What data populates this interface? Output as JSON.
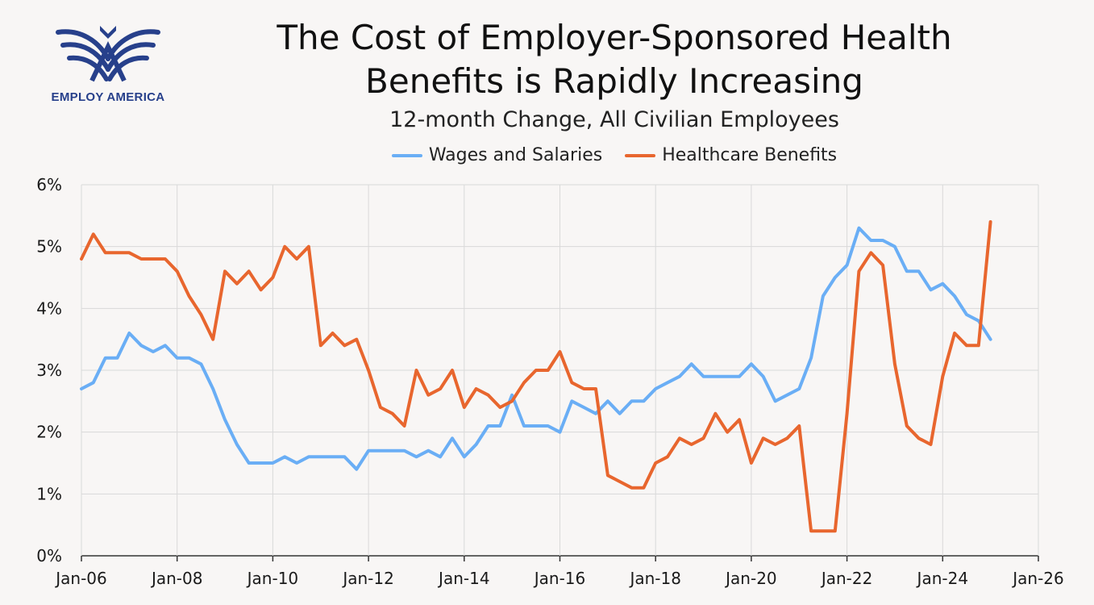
{
  "header": {
    "logo_text": "EMPLOY AMERICA",
    "title_line1": "The Cost of Employer-Sponsored Health",
    "title_line2": "Benefits is Rapidly Increasing",
    "subtitle": "12-month Change, All Civilian Employees"
  },
  "colors": {
    "wages": "#6aaef5",
    "healthcare": "#e8662e",
    "grid": "#d9d9d9",
    "brand": "#27408b"
  },
  "chart_data": {
    "type": "line",
    "title": "The Cost of Employer-Sponsored Health Benefits is Rapidly Increasing",
    "subtitle": "12-month Change, All Civilian Employees",
    "legend_position": "top",
    "grid": true,
    "x_tick_labels": [
      "Jan-06",
      "Jan-08",
      "Jan-10",
      "Jan-12",
      "Jan-14",
      "Jan-16",
      "Jan-18",
      "Jan-20",
      "Jan-22",
      "Jan-24",
      "Jan-26"
    ],
    "y_tick_labels": [
      "0%",
      "1%",
      "2%",
      "3%",
      "4%",
      "5%",
      "6%"
    ],
    "ylim": [
      0,
      6
    ],
    "xlim": [
      "2006-01",
      "2026-01"
    ],
    "x": [
      "2006-01",
      "2006-04",
      "2006-07",
      "2006-10",
      "2007-01",
      "2007-04",
      "2007-07",
      "2007-10",
      "2008-01",
      "2008-04",
      "2008-07",
      "2008-10",
      "2009-01",
      "2009-04",
      "2009-07",
      "2009-10",
      "2010-01",
      "2010-04",
      "2010-07",
      "2010-10",
      "2011-01",
      "2011-04",
      "2011-07",
      "2011-10",
      "2012-01",
      "2012-04",
      "2012-07",
      "2012-10",
      "2013-01",
      "2013-04",
      "2013-07",
      "2013-10",
      "2014-01",
      "2014-04",
      "2014-07",
      "2014-10",
      "2015-01",
      "2015-04",
      "2015-07",
      "2015-10",
      "2016-01",
      "2016-04",
      "2016-07",
      "2016-10",
      "2017-01",
      "2017-04",
      "2017-07",
      "2017-10",
      "2018-01",
      "2018-04",
      "2018-07",
      "2018-10",
      "2019-01",
      "2019-04",
      "2019-07",
      "2019-10",
      "2020-01",
      "2020-04",
      "2020-07",
      "2020-10",
      "2021-01",
      "2021-04",
      "2021-07",
      "2021-10",
      "2022-01",
      "2022-04",
      "2022-07",
      "2022-10",
      "2023-01",
      "2023-04",
      "2023-07",
      "2023-10",
      "2024-01",
      "2024-04",
      "2024-07",
      "2024-10",
      "2025-01"
    ],
    "series": [
      {
        "name": "Wages and Salaries",
        "values": [
          2.7,
          2.8,
          3.2,
          3.2,
          3.6,
          3.4,
          3.3,
          3.4,
          3.2,
          3.2,
          3.1,
          2.7,
          2.2,
          1.8,
          1.5,
          1.5,
          1.5,
          1.6,
          1.5,
          1.6,
          1.6,
          1.6,
          1.6,
          1.4,
          1.7,
          1.7,
          1.7,
          1.7,
          1.6,
          1.7,
          1.6,
          1.9,
          1.6,
          1.8,
          2.1,
          2.1,
          2.6,
          2.1,
          2.1,
          2.1,
          2.0,
          2.5,
          2.4,
          2.3,
          2.5,
          2.3,
          2.5,
          2.5,
          2.7,
          2.8,
          2.9,
          3.1,
          2.9,
          2.9,
          2.9,
          2.9,
          3.1,
          2.9,
          2.5,
          2.6,
          2.7,
          3.2,
          4.2,
          4.5,
          4.7,
          5.3,
          5.1,
          5.1,
          5.0,
          4.6,
          4.6,
          4.3,
          4.4,
          4.2,
          3.9,
          3.8,
          3.5
        ]
      },
      {
        "name": "Healthcare Benefits",
        "values": [
          4.8,
          5.2,
          4.9,
          4.9,
          4.9,
          4.8,
          4.8,
          4.8,
          4.6,
          4.2,
          3.9,
          3.5,
          4.6,
          4.4,
          4.6,
          4.3,
          4.5,
          5.0,
          4.8,
          5.0,
          3.4,
          3.6,
          3.4,
          3.5,
          3.0,
          2.4,
          2.3,
          2.1,
          3.0,
          2.6,
          2.7,
          3.0,
          2.4,
          2.7,
          2.6,
          2.4,
          2.5,
          2.8,
          3.0,
          3.0,
          3.3,
          2.8,
          2.7,
          2.7,
          1.3,
          1.2,
          1.1,
          1.1,
          1.5,
          1.6,
          1.9,
          1.8,
          1.9,
          2.3,
          2.0,
          2.2,
          1.5,
          1.9,
          1.8,
          1.9,
          2.1,
          0.4,
          0.4,
          0.4,
          2.3,
          4.6,
          4.9,
          4.7,
          3.1,
          2.1,
          1.9,
          1.8,
          2.9,
          3.6,
          3.4,
          3.4,
          5.4
        ]
      }
    ]
  }
}
